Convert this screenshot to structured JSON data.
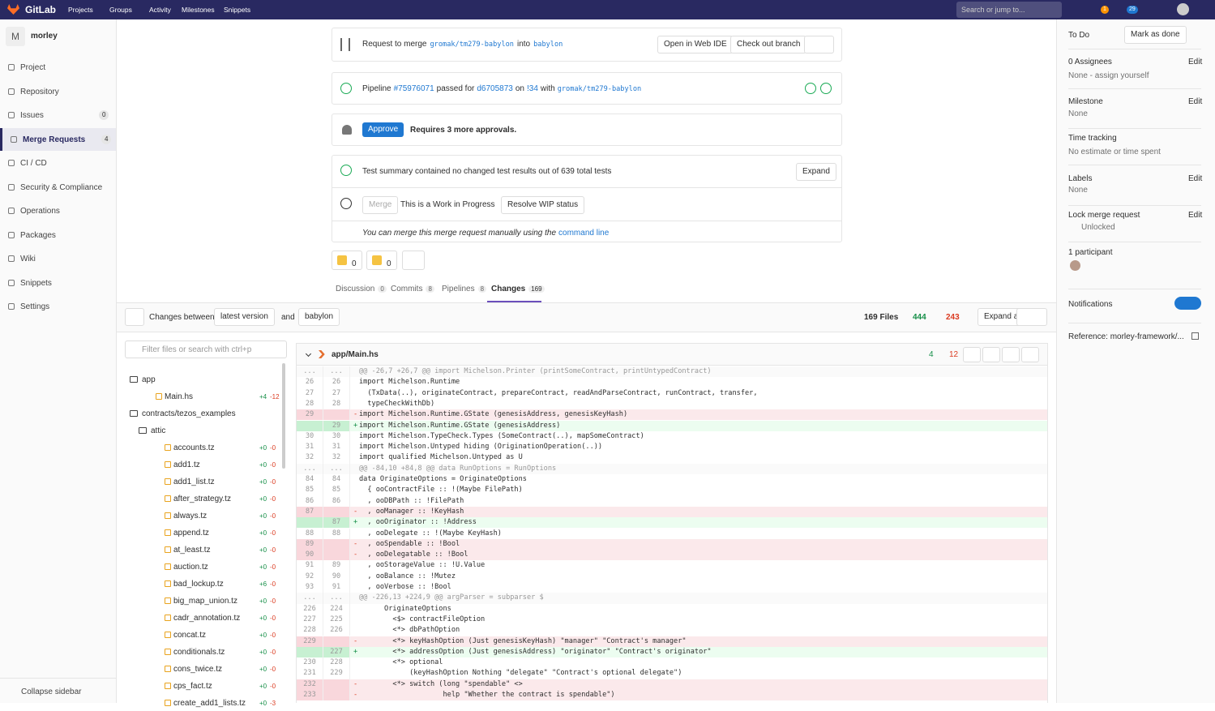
{
  "topbar": {
    "brand": "GitLab",
    "nav": [
      "Projects",
      "Groups",
      "Activity",
      "Milestones",
      "Snippets"
    ],
    "search": "Search or jump to...",
    "mr_badge": "1",
    "todo_badge": "29"
  },
  "sidebar": {
    "initial": "M",
    "project": "morley",
    "items": [
      {
        "label": "Project"
      },
      {
        "label": "Repository"
      },
      {
        "label": "Issues",
        "count": "0"
      },
      {
        "label": "Merge Requests",
        "count": "4"
      },
      {
        "label": "CI / CD"
      },
      {
        "label": "Security & Compliance"
      },
      {
        "label": "Operations"
      },
      {
        "label": "Packages"
      },
      {
        "label": "Wiki"
      },
      {
        "label": "Snippets"
      },
      {
        "label": "Settings"
      }
    ],
    "collapse": "Collapse sidebar"
  },
  "widget": {
    "merge_request": [
      "Request to merge",
      "gromak/tm279-babylon",
      "into",
      "babylon"
    ],
    "open_ide": "Open in Web IDE",
    "checkout": "Check out branch",
    "pipeline": [
      "Pipeline",
      "#75976071",
      "passed for",
      "d6705873",
      "on",
      "!34",
      "with",
      "gromak/tm279-babylon"
    ],
    "approve": "Approve",
    "approvals": "Requires 3 more approvals.",
    "test_summary": "Test summary contained no changed test results out of 639 total tests",
    "expand": "Expand",
    "merge": "Merge",
    "wip": "This is a Work in Progress",
    "resolve_wip": "Resolve WIP status",
    "manual": "You can merge this merge request manually using the",
    "command_line": "command line"
  },
  "reactions": {
    "thumbs_up": "0",
    "thumbs_down": "0"
  },
  "tabs": [
    {
      "label": "Discussion",
      "count": "0"
    },
    {
      "label": "Commits",
      "count": "8"
    },
    {
      "label": "Pipelines",
      "count": "8"
    },
    {
      "label": "Changes",
      "count": "169"
    }
  ],
  "toolbar": {
    "changes_between": "Changes between",
    "version": "latest version",
    "and": "and",
    "target": "babylon",
    "files": "169 Files",
    "added": "444",
    "removed": "243",
    "expand_all": "Expand all"
  },
  "file_tree": {
    "filter": "Filter files or search with ctrl+p",
    "entries": [
      {
        "name": "app",
        "kind": "folder",
        "depth": 0
      },
      {
        "name": "Main.hs",
        "kind": "file",
        "depth": 1,
        "added": "+4",
        "removed": "-12"
      },
      {
        "name": "contracts/tezos_examples",
        "kind": "folder",
        "depth": 0
      },
      {
        "name": "attic",
        "kind": "folder",
        "depth": 1
      },
      {
        "name": "accounts.tz",
        "kind": "file",
        "depth": 2,
        "added": "+0",
        "removed": "-0"
      },
      {
        "name": "add1.tz",
        "kind": "file",
        "depth": 2,
        "added": "+0",
        "removed": "-0"
      },
      {
        "name": "add1_list.tz",
        "kind": "file",
        "depth": 2,
        "added": "+0",
        "removed": "-0"
      },
      {
        "name": "after_strategy.tz",
        "kind": "file",
        "depth": 2,
        "added": "+0",
        "removed": "-0"
      },
      {
        "name": "always.tz",
        "kind": "file",
        "depth": 2,
        "added": "+0",
        "removed": "-0"
      },
      {
        "name": "append.tz",
        "kind": "file",
        "depth": 2,
        "added": "+0",
        "removed": "-0"
      },
      {
        "name": "at_least.tz",
        "kind": "file",
        "depth": 2,
        "added": "+0",
        "removed": "-0"
      },
      {
        "name": "auction.tz",
        "kind": "file",
        "depth": 2,
        "added": "+0",
        "removed": "-0"
      },
      {
        "name": "bad_lockup.tz",
        "kind": "file",
        "depth": 2,
        "added": "+6",
        "removed": "-0"
      },
      {
        "name": "big_map_union.tz",
        "kind": "file",
        "depth": 2,
        "added": "+0",
        "removed": "-0"
      },
      {
        "name": "cadr_annotation.tz",
        "kind": "file",
        "depth": 2,
        "added": "+0",
        "removed": "-0"
      },
      {
        "name": "concat.tz",
        "kind": "file",
        "depth": 2,
        "added": "+0",
        "removed": "-0"
      },
      {
        "name": "conditionals.tz",
        "kind": "file",
        "depth": 2,
        "added": "+0",
        "removed": "-0"
      },
      {
        "name": "cons_twice.tz",
        "kind": "file",
        "depth": 2,
        "added": "+0",
        "removed": "-0"
      },
      {
        "name": "cps_fact.tz",
        "kind": "file",
        "depth": 2,
        "added": "+0",
        "removed": "-0"
      },
      {
        "name": "create_add1_lists.tz",
        "kind": "file",
        "depth": 2,
        "added": "+0",
        "removed": "-3"
      }
    ]
  },
  "diff": {
    "file": "app/Main.hs",
    "added": "4",
    "removed": "12",
    "lines": [
      {
        "type": "hunk",
        "old": "...",
        "new": "...",
        "text": "@@ -26,7 +26,7 @@ import Michelson.Printer (printSomeContract, printUntypedContract)"
      },
      {
        "type": "ctx",
        "old": 26,
        "new": 26,
        "text": "import Michelson.Runtime"
      },
      {
        "type": "ctx",
        "old": 27,
        "new": 27,
        "text": "  (TxData(..), originateContract, prepareContract, readAndParseContract, runContract, transfer,"
      },
      {
        "type": "ctx",
        "old": 28,
        "new": 28,
        "text": "  typeCheckWithDb)"
      },
      {
        "type": "del",
        "old": 29,
        "new": null,
        "sign": "-",
        "text": "import Michelson.Runtime.GState (genesisAddress, genesisKeyHash)"
      },
      {
        "type": "add",
        "old": null,
        "new": 29,
        "sign": "+",
        "text": "import Michelson.Runtime.GState (genesisAddress)"
      },
      {
        "type": "ctx",
        "old": 30,
        "new": 30,
        "text": "import Michelson.TypeCheck.Types (SomeContract(..), mapSomeContract)"
      },
      {
        "type": "ctx",
        "old": 31,
        "new": 31,
        "text": "import Michelson.Untyped hiding (OriginationOperation(..))"
      },
      {
        "type": "ctx",
        "old": 32,
        "new": 32,
        "text": "import qualified Michelson.Untyped as U"
      },
      {
        "type": "hunk",
        "old": "...",
        "new": "...",
        "text": "@@ -84,10 +84,8 @@ data RunOptions = RunOptions"
      },
      {
        "type": "ctx",
        "old": 84,
        "new": 84,
        "text": "data OriginateOptions = OriginateOptions"
      },
      {
        "type": "ctx",
        "old": 85,
        "new": 85,
        "text": "  { ooContractFile :: !(Maybe FilePath)"
      },
      {
        "type": "ctx",
        "old": 86,
        "new": 86,
        "text": "  , ooDBPath :: !FilePath"
      },
      {
        "type": "del",
        "old": 87,
        "new": null,
        "sign": "-",
        "text": "  , ooManager :: !KeyHash"
      },
      {
        "type": "add",
        "old": null,
        "new": 87,
        "sign": "+",
        "text": "  , ooOriginator :: !Address"
      },
      {
        "type": "ctx",
        "old": 88,
        "new": 88,
        "text": "  , ooDelegate :: !(Maybe KeyHash)"
      },
      {
        "type": "del",
        "old": 89,
        "new": null,
        "sign": "-",
        "text": "  , ooSpendable :: !Bool"
      },
      {
        "type": "del",
        "old": 90,
        "new": null,
        "sign": "-",
        "text": "  , ooDelegatable :: !Bool"
      },
      {
        "type": "ctx",
        "old": 91,
        "new": 89,
        "text": "  , ooStorageValue :: !U.Value"
      },
      {
        "type": "ctx",
        "old": 92,
        "new": 90,
        "text": "  , ooBalance :: !Mutez"
      },
      {
        "type": "ctx",
        "old": 93,
        "new": 91,
        "text": "  , ooVerbose :: !Bool"
      },
      {
        "type": "hunk",
        "old": "...",
        "new": "...",
        "text": "@@ -226,13 +224,9 @@ argParser = subparser $"
      },
      {
        "type": "ctx",
        "old": 226,
        "new": 224,
        "text": "      OriginateOptions"
      },
      {
        "type": "ctx",
        "old": 227,
        "new": 225,
        "text": "        <$> contractFileOption"
      },
      {
        "type": "ctx",
        "old": 228,
        "new": 226,
        "text": "        <*> dbPathOption"
      },
      {
        "type": "del",
        "old": 229,
        "new": null,
        "sign": "-",
        "text": "        <*> keyHashOption (Just genesisKeyHash) \"manager\" \"Contract's manager\""
      },
      {
        "type": "add",
        "old": null,
        "new": 227,
        "sign": "+",
        "text": "        <*> addressOption (Just genesisAddress) \"originator\" \"Contract's originator\""
      },
      {
        "type": "ctx",
        "old": 230,
        "new": 228,
        "text": "        <*> optional"
      },
      {
        "type": "ctx",
        "old": 231,
        "new": 229,
        "text": "            (keyHashOption Nothing \"delegate\" \"Contract's optional delegate\")"
      },
      {
        "type": "del",
        "old": 232,
        "new": null,
        "sign": "-",
        "text": "        <*> switch (long \"spendable\" <>"
      },
      {
        "type": "del",
        "old": 233,
        "new": null,
        "sign": "-",
        "text": "                    help \"Whether the contract is spendable\")"
      }
    ]
  },
  "right_sidebar": {
    "todo": "To Do",
    "mark_done": "Mark as done",
    "sections": [
      {
        "title": "0 Assignees",
        "edit": "Edit",
        "value": "None - assign yourself"
      },
      {
        "title": "Milestone",
        "edit": "Edit",
        "value": "None"
      },
      {
        "title": "Time tracking",
        "value": "No estimate or time spent"
      },
      {
        "title": "Labels",
        "edit": "Edit",
        "value": "None"
      },
      {
        "title": "Lock merge request",
        "edit": "Edit",
        "value": "Unlocked"
      },
      {
        "title": "1 participant"
      },
      {
        "title": "Notifications"
      }
    ],
    "reference": "Reference: morley-framework/..."
  }
}
